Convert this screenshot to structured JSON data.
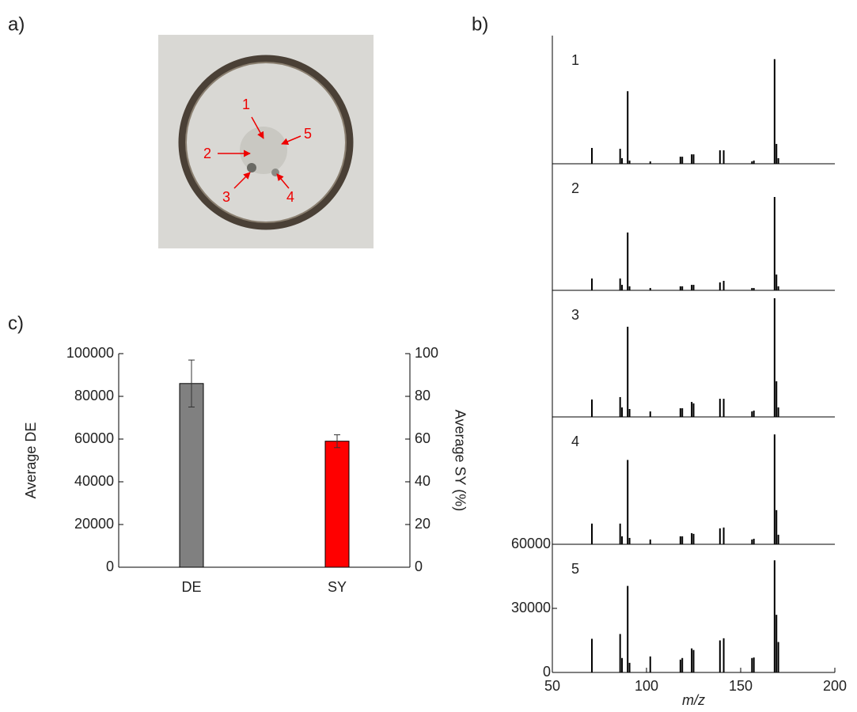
{
  "panel_labels": [
    "a)",
    "b)",
    "c)"
  ],
  "photo": {
    "spot_labels": [
      "1",
      "2",
      "3",
      "4",
      "5"
    ]
  },
  "chart_data": [
    {
      "type": "spectrum",
      "title": "1",
      "color": "#000000",
      "xlim": [
        50,
        200
      ],
      "ylim": [
        0,
        60000
      ],
      "x": [
        71,
        86,
        87,
        90,
        91,
        102,
        118,
        119,
        124,
        125,
        139,
        141,
        156,
        157,
        168,
        169,
        170
      ],
      "values": [
        7400,
        7000,
        2600,
        34000,
        1500,
        1100,
        3300,
        3300,
        4400,
        4400,
        6300,
        6300,
        1100,
        1500,
        49000,
        9300,
        2600
      ]
    },
    {
      "type": "spectrum",
      "title": "2",
      "color": "#000000",
      "xlim": [
        50,
        200
      ],
      "ylim": [
        0,
        60000
      ],
      "x": [
        71,
        86,
        87,
        90,
        91,
        102,
        118,
        119,
        124,
        125,
        139,
        141,
        156,
        157,
        168,
        169,
        170
      ],
      "values": [
        5600,
        5600,
        2600,
        27400,
        1900,
        1100,
        1900,
        1900,
        2600,
        2600,
        3750,
        4500,
        1100,
        1100,
        44250,
        7500,
        1900
      ]
    },
    {
      "type": "spectrum",
      "title": "3",
      "color": "#000000",
      "xlim": [
        50,
        200
      ],
      "ylim": [
        0,
        60000
      ],
      "x": [
        71,
        86,
        87,
        90,
        91,
        102,
        118,
        119,
        124,
        125,
        139,
        141,
        156,
        157,
        168,
        169,
        170
      ],
      "values": [
        8250,
        9400,
        4500,
        42750,
        3750,
        2600,
        4100,
        4100,
        7100,
        6400,
        8600,
        8600,
        2600,
        3000,
        56250,
        16900,
        4500
      ]
    },
    {
      "type": "spectrum",
      "title": "4",
      "color": "#000000",
      "xlim": [
        50,
        200
      ],
      "ylim": [
        0,
        60000
      ],
      "x": [
        71,
        86,
        87,
        90,
        91,
        102,
        118,
        119,
        124,
        125,
        139,
        141,
        156,
        157,
        168,
        169,
        170
      ],
      "values": [
        9750,
        9750,
        3750,
        39750,
        3000,
        2250,
        3750,
        3750,
        5250,
        4900,
        7500,
        7900,
        2250,
        2600,
        51750,
        16100,
        4500
      ]
    },
    {
      "type": "spectrum",
      "title": "5",
      "color": "#000000",
      "xlim": [
        50,
        200
      ],
      "ylim": [
        0,
        60000
      ],
      "xticks": [
        50,
        100,
        150,
        200
      ],
      "yticks": [
        0,
        30000,
        60000
      ],
      "xlabel": "m/z",
      "x": [
        71,
        86,
        87,
        90,
        91,
        102,
        118,
        119,
        124,
        125,
        139,
        141,
        156,
        157,
        168,
        169,
        170
      ],
      "values": [
        15750,
        18000,
        6750,
        40500,
        4500,
        7500,
        6000,
        6750,
        11250,
        10500,
        15000,
        16000,
        6750,
        7000,
        52500,
        27000,
        14250
      ]
    },
    {
      "type": "bar",
      "categories": [
        "DE",
        "SY"
      ],
      "ylabel": "Average  DE",
      "y2label": "Average  SY (%)",
      "ylim": [
        0,
        100000
      ],
      "yticks": [
        0,
        20000,
        40000,
        60000,
        80000,
        100000
      ],
      "y2lim": [
        0,
        100
      ],
      "y2ticks": [
        0,
        20,
        40,
        60,
        80,
        100
      ],
      "series": [
        {
          "color": "#808080",
          "values": [
            86000,
            null
          ],
          "errors": [
            11000,
            null
          ]
        },
        {
          "color": "#ff0000",
          "axis": "y2",
          "values": [
            null,
            59
          ],
          "errors": [
            null,
            3
          ]
        }
      ]
    }
  ]
}
